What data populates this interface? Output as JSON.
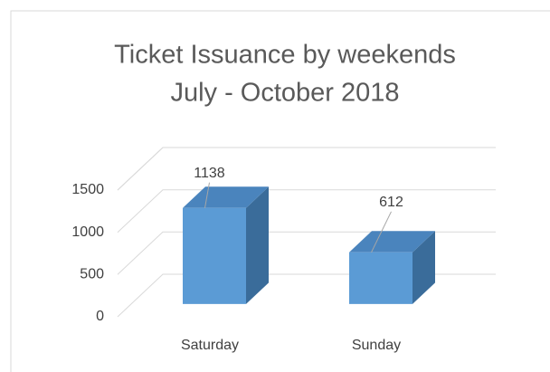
{
  "chart_data": {
    "type": "bar3d",
    "title": "Ticket Issuance by weekends",
    "subtitle": "July - October 2018",
    "categories": [
      "Saturday",
      "Sunday"
    ],
    "values": [
      1138,
      612
    ],
    "color": "#5b9bd5",
    "ylim": [
      0,
      1500
    ],
    "yticks": [
      0,
      500,
      1000,
      1500
    ],
    "grid": true
  }
}
